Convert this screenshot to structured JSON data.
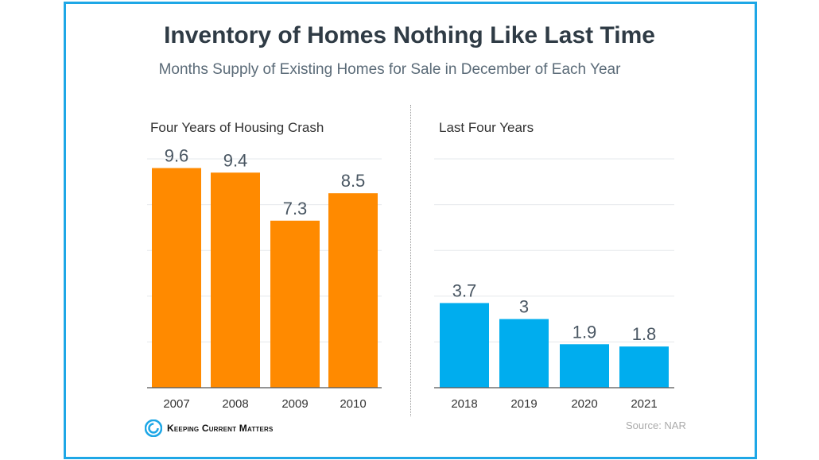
{
  "title": "Inventory of Homes Nothing Like Last Time",
  "subtitle": "Months Supply of Existing Homes for Sale in December of Each Year",
  "source": "Source: NAR",
  "logo_text": "Keeping Current Matters",
  "colors": {
    "frame": "#1ea7e6",
    "crash": "#ff8a00",
    "recent": "#00adee"
  },
  "chart_data": [
    {
      "type": "bar",
      "title": "Four Years of Housing Crash",
      "categories": [
        "2007",
        "2008",
        "2009",
        "2010"
      ],
      "values": [
        9.6,
        9.4,
        7.3,
        8.5
      ],
      "labels": [
        "9.6",
        "9.4",
        "7.3",
        "8.5"
      ],
      "ylim": [
        0,
        10
      ],
      "grid": true,
      "color": "#ff8a00"
    },
    {
      "type": "bar",
      "title": "Last Four Years",
      "categories": [
        "2018",
        "2019",
        "2020",
        "2021"
      ],
      "values": [
        3.7,
        3,
        1.9,
        1.8
      ],
      "labels": [
        "3.7",
        "3",
        "1.9",
        "1.8"
      ],
      "ylim": [
        0,
        10
      ],
      "grid": true,
      "color": "#00adee"
    }
  ]
}
